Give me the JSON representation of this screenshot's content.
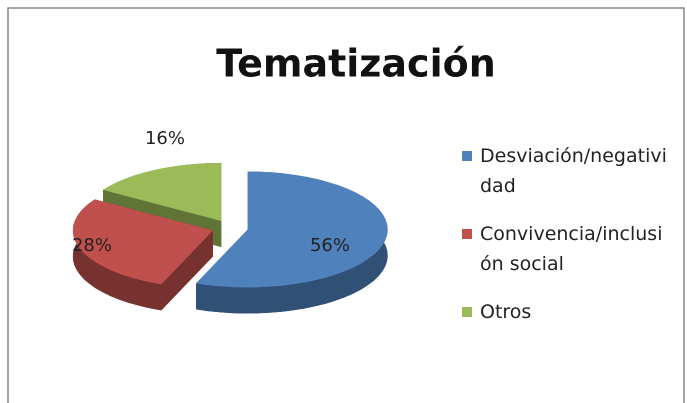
{
  "chart_data": {
    "type": "pie",
    "title": "Tematización",
    "categories": [
      "Desviación/negatividad",
      "Convivencia/inclusión social",
      "Otros"
    ],
    "values": [
      56,
      28,
      16
    ],
    "value_labels": [
      "56%",
      "28%",
      "16%"
    ],
    "colors": [
      "#4f81bd",
      "#c0504d",
      "#9bbb59"
    ],
    "legend": "right"
  }
}
